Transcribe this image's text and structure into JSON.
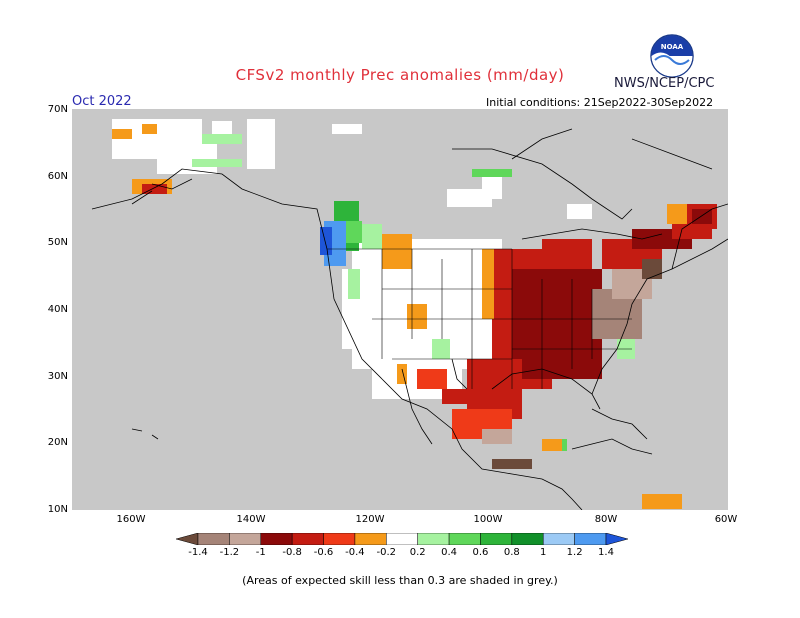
{
  "title": "CFSv2 monthly Prec anomalies (mm/day)",
  "agency": "NWS/NCEP/CPC",
  "logo_text": "NOAA",
  "month": "Oct 2022",
  "initial_conditions": "Initial conditions: 21Sep2022-30Sep2022",
  "latitude_labels": [
    "70N",
    "60N",
    "50N",
    "40N",
    "30N",
    "20N",
    "10N"
  ],
  "longitude_labels": [
    "160W",
    "140W",
    "120W",
    "100W",
    "80W",
    "60W"
  ],
  "colorbar": {
    "labels": [
      "-1.4",
      "-1.2",
      "-1",
      "-0.8",
      "-0.6",
      "-0.4",
      "-0.2",
      "0.2",
      "0.4",
      "0.6",
      "0.8",
      "1",
      "1.2",
      "1.4"
    ],
    "colors": [
      "#6b4a3a",
      "#a58478",
      "#c4a69a",
      "#8b0a0a",
      "#c41c12",
      "#ef3a18",
      "#f59a1a",
      "#ffffff",
      "#a6f2a0",
      "#5fd75a",
      "#2eb43a",
      "#11902a",
      "#9ccaf5",
      "#4e9af0",
      "#1e55d8"
    ]
  },
  "colors": {
    "grey_land": "#c8c8c8",
    "ocean": "#c8c8c8",
    "brown": "#8b5a4a"
  },
  "footnote": "(Areas of expected skill less than 0.3 are shaded in grey.)"
}
